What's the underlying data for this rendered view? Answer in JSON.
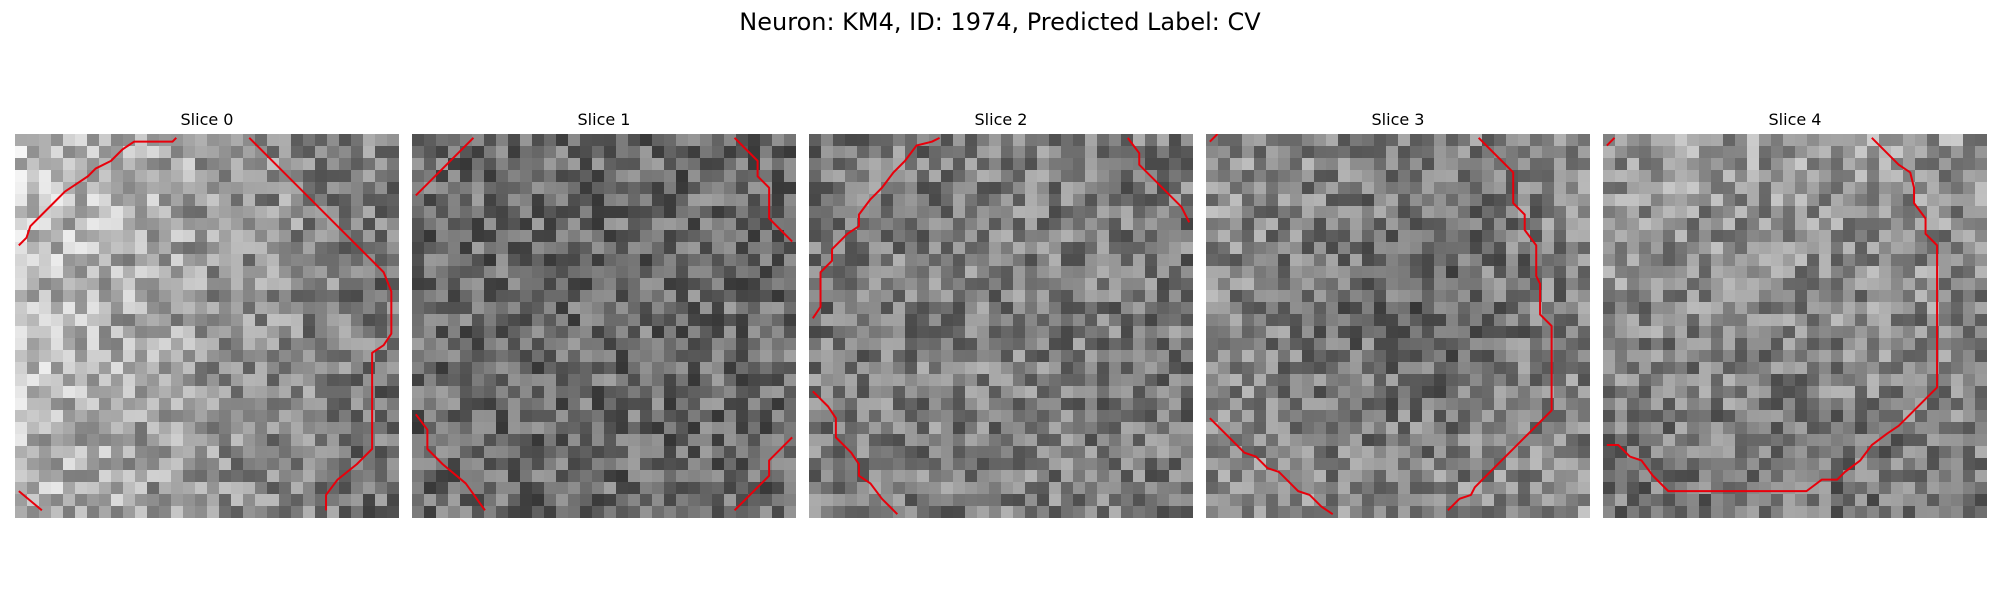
{
  "figure": {
    "title": "Neuron: KM4, ID: 1974, Predicted Label: CV"
  },
  "panels": [
    {
      "title": "Slice 0",
      "brightness": "light-left",
      "seed": 11,
      "contours": [
        [
          [
            0.01,
            0.29
          ],
          [
            0.03,
            0.27
          ],
          [
            0.04,
            0.24
          ],
          [
            0.07,
            0.21
          ],
          [
            0.1,
            0.18
          ],
          [
            0.13,
            0.15
          ],
          [
            0.16,
            0.13
          ],
          [
            0.19,
            0.11
          ],
          [
            0.21,
            0.09
          ],
          [
            0.25,
            0.07
          ],
          [
            0.28,
            0.04
          ],
          [
            0.31,
            0.02
          ],
          [
            0.41,
            0.02
          ],
          [
            0.42,
            0.01
          ]
        ],
        [
          [
            0.61,
            0.01
          ],
          [
            0.72,
            0.12
          ],
          [
            0.84,
            0.24
          ],
          [
            0.96,
            0.36
          ],
          [
            0.98,
            0.41
          ],
          [
            0.98,
            0.52
          ],
          [
            0.96,
            0.55
          ],
          [
            0.93,
            0.57
          ],
          [
            0.93,
            0.82
          ],
          [
            0.89,
            0.86
          ],
          [
            0.84,
            0.9
          ],
          [
            0.81,
            0.94
          ],
          [
            0.81,
            0.98
          ]
        ],
        [
          [
            0.01,
            0.93
          ],
          [
            0.07,
            0.98
          ]
        ]
      ]
    },
    {
      "title": "Slice 1",
      "brightness": "dark",
      "seed": 23,
      "contours": [
        [
          [
            0.01,
            0.16
          ],
          [
            0.04,
            0.13
          ],
          [
            0.09,
            0.08
          ],
          [
            0.16,
            0.01
          ]
        ],
        [
          [
            0.84,
            0.01
          ],
          [
            0.87,
            0.04
          ],
          [
            0.9,
            0.07
          ],
          [
            0.9,
            0.11
          ],
          [
            0.93,
            0.14
          ],
          [
            0.93,
            0.18
          ],
          [
            0.93,
            0.22
          ],
          [
            0.96,
            0.25
          ],
          [
            0.99,
            0.28
          ]
        ],
        [
          [
            0.01,
            0.73
          ],
          [
            0.04,
            0.77
          ],
          [
            0.04,
            0.82
          ],
          [
            0.08,
            0.86
          ],
          [
            0.14,
            0.91
          ],
          [
            0.19,
            0.98
          ]
        ],
        [
          [
            0.99,
            0.79
          ],
          [
            0.93,
            0.85
          ],
          [
            0.93,
            0.89
          ],
          [
            0.84,
            0.98
          ]
        ]
      ]
    },
    {
      "title": "Slice 2",
      "brightness": "mid",
      "seed": 37,
      "contours": [
        [
          [
            0.01,
            0.48
          ],
          [
            0.03,
            0.45
          ],
          [
            0.03,
            0.36
          ],
          [
            0.06,
            0.33
          ],
          [
            0.06,
            0.3
          ],
          [
            0.1,
            0.26
          ],
          [
            0.13,
            0.24
          ],
          [
            0.13,
            0.21
          ],
          [
            0.16,
            0.17
          ],
          [
            0.19,
            0.14
          ],
          [
            0.22,
            0.1
          ],
          [
            0.25,
            0.07
          ],
          [
            0.28,
            0.03
          ],
          [
            0.32,
            0.02
          ],
          [
            0.34,
            0.01
          ]
        ],
        [
          [
            0.83,
            0.01
          ],
          [
            0.86,
            0.05
          ],
          [
            0.86,
            0.08
          ],
          [
            0.9,
            0.12
          ],
          [
            0.93,
            0.15
          ],
          [
            0.97,
            0.19
          ],
          [
            0.99,
            0.23
          ]
        ],
        [
          [
            0.01,
            0.67
          ],
          [
            0.05,
            0.71
          ],
          [
            0.07,
            0.74
          ],
          [
            0.07,
            0.79
          ],
          [
            0.11,
            0.83
          ],
          [
            0.13,
            0.86
          ],
          [
            0.13,
            0.89
          ],
          [
            0.16,
            0.91
          ],
          [
            0.19,
            0.95
          ],
          [
            0.23,
            0.99
          ]
        ]
      ]
    },
    {
      "title": "Slice 3",
      "brightness": "dark-center",
      "seed": 53,
      "contours": [
        [
          [
            0.01,
            0.02
          ],
          [
            0.03,
            0.0
          ]
        ],
        [
          [
            0.71,
            0.01
          ],
          [
            0.74,
            0.04
          ],
          [
            0.77,
            0.07
          ],
          [
            0.8,
            0.1
          ],
          [
            0.8,
            0.14
          ],
          [
            0.8,
            0.18
          ],
          [
            0.83,
            0.21
          ],
          [
            0.83,
            0.25
          ],
          [
            0.86,
            0.29
          ],
          [
            0.86,
            0.33
          ],
          [
            0.86,
            0.37
          ],
          [
            0.87,
            0.39
          ],
          [
            0.87,
            0.47
          ],
          [
            0.9,
            0.5
          ],
          [
            0.9,
            0.72
          ],
          [
            0.87,
            0.75
          ],
          [
            0.84,
            0.78
          ],
          [
            0.81,
            0.81
          ],
          [
            0.78,
            0.84
          ],
          [
            0.75,
            0.87
          ],
          [
            0.72,
            0.9
          ],
          [
            0.7,
            0.92
          ],
          [
            0.69,
            0.94
          ],
          [
            0.66,
            0.95
          ],
          [
            0.63,
            0.98
          ]
        ],
        [
          [
            0.01,
            0.74
          ],
          [
            0.04,
            0.77
          ],
          [
            0.07,
            0.8
          ],
          [
            0.1,
            0.83
          ],
          [
            0.13,
            0.84
          ],
          [
            0.16,
            0.87
          ],
          [
            0.19,
            0.88
          ],
          [
            0.22,
            0.91
          ],
          [
            0.24,
            0.93
          ],
          [
            0.27,
            0.94
          ],
          [
            0.3,
            0.97
          ],
          [
            0.33,
            0.99
          ]
        ]
      ]
    },
    {
      "title": "Slice 4",
      "brightness": "light-top",
      "seed": 71,
      "contours": [
        [
          [
            0.01,
            0.03
          ],
          [
            0.03,
            0.01
          ]
        ],
        [
          [
            0.7,
            0.01
          ],
          [
            0.74,
            0.05
          ],
          [
            0.77,
            0.08
          ],
          [
            0.8,
            0.1
          ],
          [
            0.81,
            0.14
          ],
          [
            0.81,
            0.18
          ],
          [
            0.84,
            0.22
          ],
          [
            0.84,
            0.26
          ],
          [
            0.87,
            0.29
          ],
          [
            0.87,
            0.66
          ],
          [
            0.84,
            0.69
          ],
          [
            0.8,
            0.73
          ],
          [
            0.77,
            0.76
          ],
          [
            0.74,
            0.78
          ],
          [
            0.7,
            0.81
          ],
          [
            0.67,
            0.85
          ],
          [
            0.63,
            0.88
          ],
          [
            0.61,
            0.9
          ],
          [
            0.57,
            0.9
          ],
          [
            0.53,
            0.93
          ],
          [
            0.17,
            0.93
          ],
          [
            0.13,
            0.89
          ],
          [
            0.1,
            0.85
          ],
          [
            0.07,
            0.84
          ],
          [
            0.04,
            0.81
          ],
          [
            0.01,
            0.81
          ]
        ]
      ]
    }
  ],
  "colors": {
    "contour": "#e8000b"
  }
}
